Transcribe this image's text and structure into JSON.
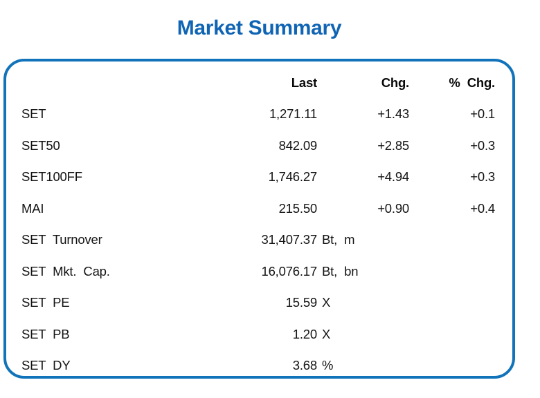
{
  "title": "Market Summary",
  "colors": {
    "title_accent": "#1064b4",
    "card_border": "#1173ba",
    "text": "#141414"
  },
  "table": {
    "columns": {
      "last": "Last",
      "chg": "Chg.",
      "pct_chg": "% Chg."
    },
    "rows": [
      {
        "label": "SET",
        "last": "1,271.11",
        "unit": "",
        "chg": "+1.43",
        "pct_chg": "+0.1"
      },
      {
        "label": "SET50",
        "last": "842.09",
        "unit": "",
        "chg": "+2.85",
        "pct_chg": "+0.3"
      },
      {
        "label": "SET100FF",
        "last": "1,746.27",
        "unit": "",
        "chg": "+4.94",
        "pct_chg": "+0.3"
      },
      {
        "label": "MAI",
        "last": "215.50",
        "unit": "",
        "chg": "+0.90",
        "pct_chg": "+0.4"
      },
      {
        "label": "SET Turnover",
        "last": "31,407.37",
        "unit": "Bt, m",
        "chg": "",
        "pct_chg": ""
      },
      {
        "label": "SET Mkt. Cap.",
        "last": "16,076.17",
        "unit": "Bt, bn",
        "chg": "",
        "pct_chg": ""
      },
      {
        "label": "SET PE",
        "last": "15.59",
        "unit": "X",
        "chg": "",
        "pct_chg": ""
      },
      {
        "label": "SET PB",
        "last": "1.20",
        "unit": "X",
        "chg": "",
        "pct_chg": ""
      },
      {
        "label": "SET DY",
        "last": "3.68",
        "unit": "%",
        "chg": "",
        "pct_chg": ""
      }
    ]
  }
}
